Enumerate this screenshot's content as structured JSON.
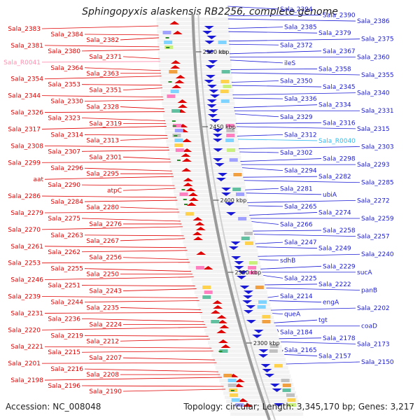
{
  "title": "Sphingopyxis alaskensis RB2256, complete genome",
  "accession": "Accession: NC_008048",
  "footer": "Topology: circular; Length: 3,345,170 bp; Genes: 3,217",
  "colors": {
    "left_strand": "#e00000",
    "right_strand": "#1a1ad6",
    "rna": "#ff8fb0",
    "rna_right": "#33bbee",
    "backbone": "#9a9a9a",
    "kbp_label": "#222222"
  },
  "kbp_markers": [
    "2500 kbp",
    "2450 kbp",
    "2400 kbp",
    "2350 kbp",
    "2300 kbp"
  ],
  "left_labels": [
    "Sala_2383",
    "Sala_2384",
    "Sala_2382",
    "Sala_2381",
    "Sala_2380",
    "Sala_2371",
    "Sala_R0041",
    "Sala_2364",
    "Sala_2363",
    "Sala_2354",
    "Sala_2353",
    "Sala_2351",
    "Sala_2344",
    "Sala_2330",
    "Sala_2328",
    "Sala_2326",
    "Sala_2323",
    "Sala_2319",
    "Sala_2317",
    "Sala_2314",
    "Sala_2313",
    "Sala_2308",
    "Sala_2307",
    "Sala_2301",
    "Sala_2299",
    "Sala_2296",
    "Sala_2295",
    "aat",
    "Sala_2290",
    "atpC",
    "Sala_2286",
    "Sala_2284",
    "Sala_2280",
    "Sala_2279",
    "Sala_2275",
    "Sala_2276",
    "Sala_2270",
    "Sala_2263",
    "Sala_2267",
    "Sala_2261",
    "Sala_2262",
    "Sala_2256",
    "Sala_2253",
    "Sala_2255",
    "Sala_2250",
    "Sala_2246",
    "Sala_2251",
    "Sala_2243",
    "Sala_2239",
    "Sala_2244",
    "Sala_2235",
    "Sala_2231",
    "Sala_2236",
    "Sala_2224",
    "Sala_2220",
    "Sala_2219",
    "Sala_2212",
    "Sala_2221",
    "Sala_2215",
    "Sala_2207",
    "Sala_2201",
    "Sala_2216",
    "Sala_2208",
    "Sala_2198",
    "Sala_2196",
    "Sala_2190"
  ],
  "right_labels": [
    "Sala_2394",
    "Sala_2390",
    "Sala_2386",
    "Sala_2385",
    "Sala_2379",
    "Sala_2375",
    "Sala_2372",
    "Sala_2367",
    "Sala_2360",
    "ileS",
    "Sala_2358",
    "Sala_2355",
    "Sala_2350",
    "Sala_2345",
    "Sala_2340",
    "Sala_2336",
    "Sala_2334",
    "Sala_2331",
    "Sala_2329",
    "Sala_2316",
    "Sala_2315",
    "Sala_2312",
    "Sala_R0040",
    "Sala_2303",
    "Sala_2302",
    "Sala_2298",
    "Sala_2293",
    "Sala_2294",
    "Sala_2282",
    "Sala_2285",
    "Sala_2281",
    "ubiA",
    "Sala_2272",
    "Sala_2265",
    "Sala_2274",
    "Sala_2259",
    "Sala_2266",
    "Sala_2258",
    "Sala_2257",
    "Sala_2247",
    "Sala_2249",
    "Sala_2240",
    "sdhB",
    "Sala_2229",
    "sucA",
    "Sala_2225",
    "Sala_2222",
    "panB",
    "Sala_2214",
    "engA",
    "Sala_2202",
    "queA",
    "tgt",
    "coaD",
    "Sala_2184",
    "Sala_2178",
    "Sala_2173",
    "Sala_2165",
    "Sala_2157",
    "Sala_2150"
  ]
}
